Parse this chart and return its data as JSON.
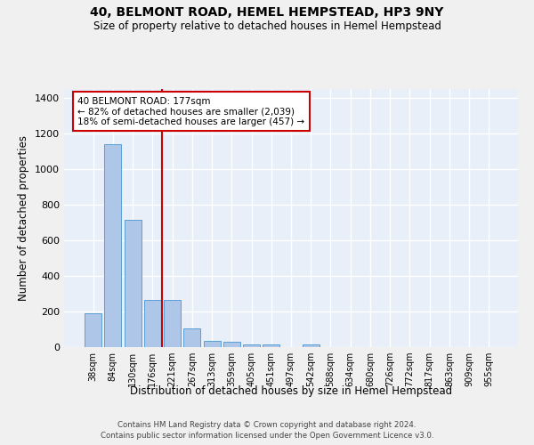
{
  "title": "40, BELMONT ROAD, HEMEL HEMPSTEAD, HP3 9NY",
  "subtitle": "Size of property relative to detached houses in Hemel Hempstead",
  "xlabel": "Distribution of detached houses by size in Hemel Hempstead",
  "ylabel": "Number of detached properties",
  "bar_color": "#aec6e8",
  "bar_edge_color": "#5a9fd4",
  "background_color": "#e8eff8",
  "grid_color": "#ffffff",
  "categories": [
    "38sqm",
    "84sqm",
    "130sqm",
    "176sqm",
    "221sqm",
    "267sqm",
    "313sqm",
    "359sqm",
    "405sqm",
    "451sqm",
    "497sqm",
    "542sqm",
    "588sqm",
    "634sqm",
    "680sqm",
    "726sqm",
    "772sqm",
    "817sqm",
    "863sqm",
    "909sqm",
    "955sqm"
  ],
  "values": [
    190,
    1140,
    715,
    265,
    265,
    105,
    35,
    28,
    15,
    13,
    0,
    13,
    0,
    0,
    0,
    0,
    0,
    0,
    0,
    0,
    0
  ],
  "ylim": [
    0,
    1450
  ],
  "yticks": [
    0,
    200,
    400,
    600,
    800,
    1000,
    1200,
    1400
  ],
  "annotation_text": "40 BELMONT ROAD: 177sqm\n← 82% of detached houses are smaller (2,039)\n18% of semi-detached houses are larger (457) →",
  "footer_line1": "Contains HM Land Registry data © Crown copyright and database right 2024.",
  "footer_line2": "Contains public sector information licensed under the Open Government Licence v3.0.",
  "red_line_color": "#cc0000",
  "annotation_box_color": "#ffffff",
  "annotation_box_edge": "#cc0000",
  "fig_bg": "#f0f0f0"
}
